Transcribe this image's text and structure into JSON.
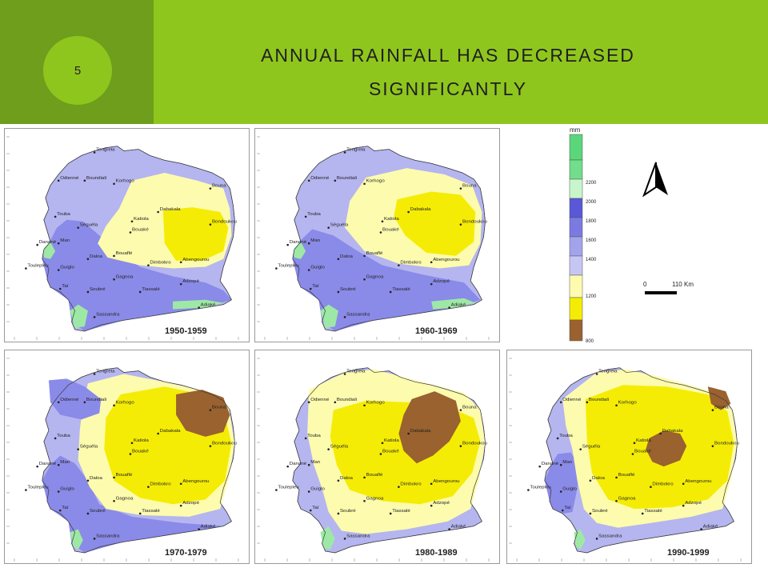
{
  "slide": {
    "number": "5",
    "title_line1": "ANNUAL RAINFALL HAS DECREASED",
    "title_line2": "SIGNIFICANTLY"
  },
  "colors": {
    "band_dark": "#6e9e1b",
    "band_light": "#8fc61e",
    "deep_blue": "#5858d8",
    "mid_blue": "#8a8ae8",
    "light_blue": "#b5b5f0",
    "pale_yellow": "#fdfbae",
    "yellow": "#f5ec05",
    "brown": "#99622f",
    "light_green": "#9ee8a6",
    "green": "#5bd67b"
  },
  "legend": {
    "unit": "mm",
    "labels": [
      "2200",
      "2000",
      "1800",
      "1600",
      "1400",
      "1200",
      "800"
    ]
  },
  "scale_bar": {
    "zero": "0",
    "distance": "110 Km"
  },
  "maps": [
    {
      "period": "1950-1959"
    },
    {
      "period": "1960-1969"
    },
    {
      "period": "1970-1979"
    },
    {
      "period": "1980-1989"
    },
    {
      "period": "1990-1999"
    }
  ],
  "towns": {
    "tengrela": "Tengrela",
    "odienne": "Odienné",
    "boundiali": "Boundiali",
    "korhogo": "Korhogo",
    "bouna": "Bouna",
    "touba": "Touba",
    "seguela": "Séguéla",
    "katiola": "Katiola",
    "dabakala": "Dabakala",
    "bondoukou": "Bondoukou",
    "bouake": "Bouaké",
    "danane": "Danané",
    "man": "Man",
    "bouafle": "Bouaflé",
    "daloa": "Daloa",
    "dimbokro": "Dimbokro",
    "abengourou": "Abengourou",
    "toulepleu": "Toulepleu",
    "guiglo": "Guiglo",
    "gagnoa": "Gagnoa",
    "tai": "Taï",
    "soubre": "Soubré",
    "tiassale": "Tiassalé",
    "adzope": "Adzopé",
    "sassandra": "Sassandra",
    "adiake": "Adiaké"
  }
}
